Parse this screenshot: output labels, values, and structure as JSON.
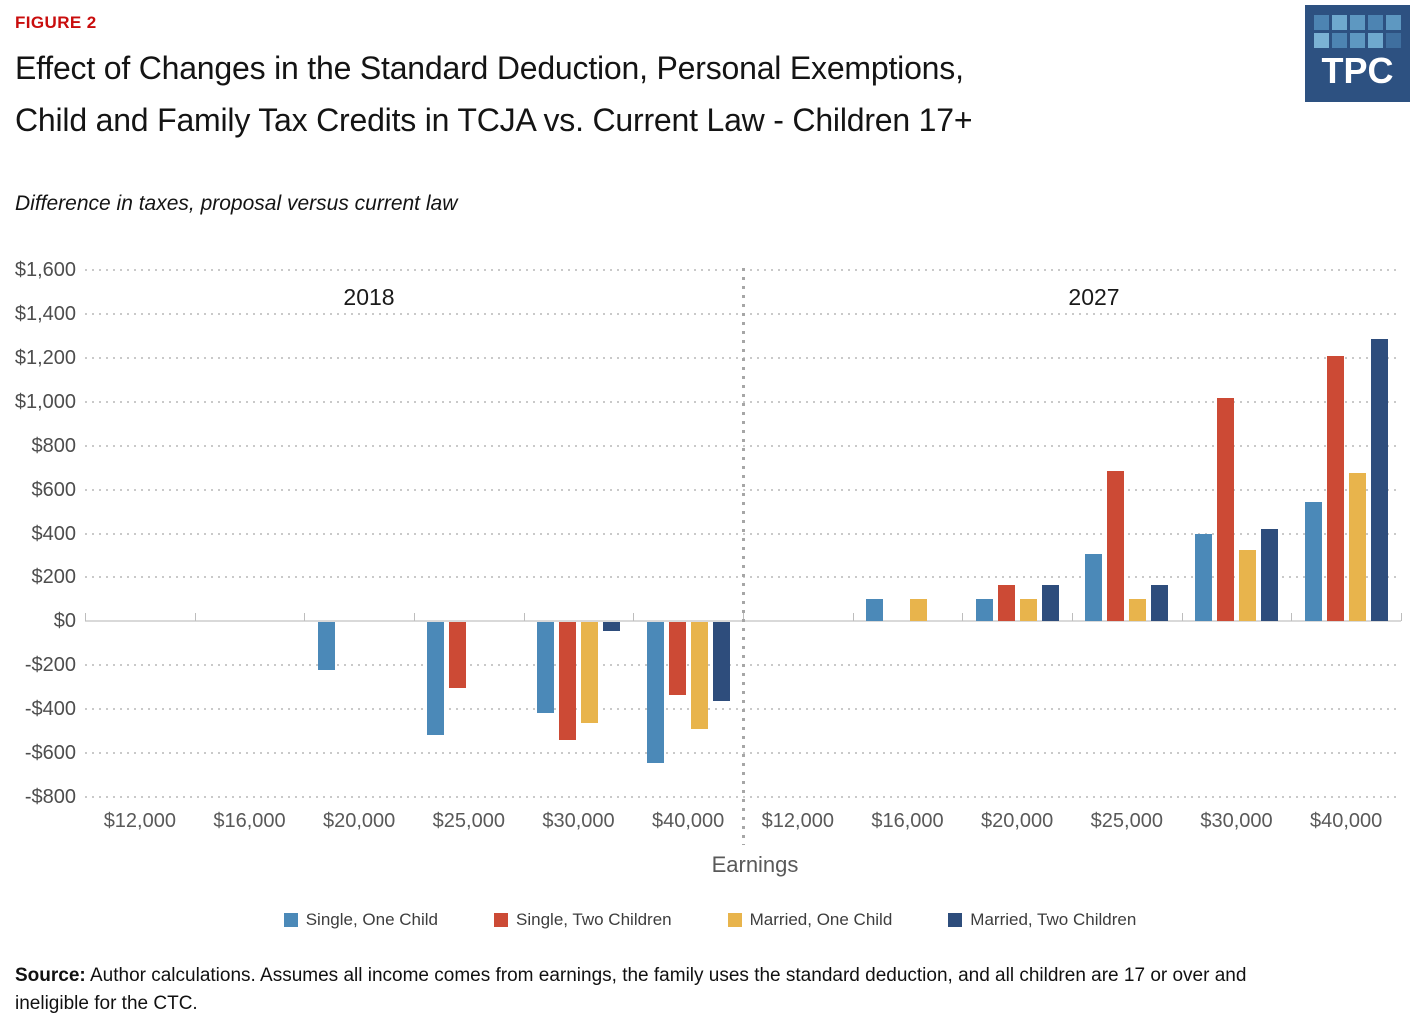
{
  "header": {
    "figure_label": "FIGURE 2",
    "title_line1": "Effect of Changes in the Standard Deduction, Personal Exemptions,",
    "title_line2": "Child and Family Tax Credits in TCJA vs. Current Law - Children 17+",
    "subtitle": "Difference in taxes, proposal versus current law"
  },
  "logo": {
    "text": "TPC",
    "background": "#2d5181",
    "tile_colors": [
      [
        "#4d84b2",
        "#6fa9ce",
        "#5e98c1",
        "#4d84b2",
        "#5e98c1"
      ],
      [
        "#7bb2d4",
        "#4d84b2",
        "#5e98c1",
        "#6fa9ce",
        "#3f6f9f"
      ]
    ]
  },
  "chart_data": {
    "type": "bar",
    "title": "Effect of Changes in the Standard Deduction, Personal Exemptions, Child and Family Tax Credits in TCJA vs. Current Law - Children 17+",
    "subtitle": "Difference in taxes, proposal versus current law",
    "xlabel": "Earnings",
    "ylabel": "",
    "ylim": [
      -800,
      1600
    ],
    "y_tick_step": 200,
    "y_tick_labels": [
      "$1,600",
      "$1,400",
      "$1,200",
      "$1,000",
      "$800",
      "$600",
      "$400",
      "$200",
      "$0",
      "-$200",
      "-$400",
      "-$600",
      "-$800"
    ],
    "grid": "dotted-horizontal",
    "legend_position": "bottom",
    "categories": [
      "$12,000",
      "$16,000",
      "$20,000",
      "$25,000",
      "$30,000",
      "$40,000"
    ],
    "series_names": [
      "Single, One Child",
      "Single, Two Children",
      "Married, One Child",
      "Married, Two Children"
    ],
    "series_colors": [
      "#4b89b8",
      "#cc4a35",
      "#e8b44c",
      "#2e4d7c"
    ],
    "panels": [
      {
        "label": "2018",
        "series": [
          {
            "name": "Single, One Child",
            "values": [
              0,
              0,
              -215,
              -515,
              -415,
              -640
            ]
          },
          {
            "name": "Single, Two Children",
            "values": [
              0,
              0,
              0,
              -300,
              -535,
              -330
            ]
          },
          {
            "name": "Married, One Child",
            "values": [
              0,
              0,
              0,
              0,
              -460,
              -485
            ]
          },
          {
            "name": "Married, Two Children",
            "values": [
              0,
              0,
              0,
              0,
              -40,
              -360
            ]
          }
        ]
      },
      {
        "label": "2027",
        "series": [
          {
            "name": "Single, One Child",
            "values": [
              0,
              100,
              100,
              305,
              400,
              545
            ]
          },
          {
            "name": "Single, Two Children",
            "values": [
              0,
              0,
              165,
              685,
              1015,
              1210
            ]
          },
          {
            "name": "Married, One Child",
            "values": [
              0,
              100,
              100,
              100,
              325,
              675
            ]
          },
          {
            "name": "Married, Two Children",
            "values": [
              0,
              0,
              165,
              165,
              420,
              1285
            ]
          }
        ]
      }
    ]
  },
  "source": {
    "label": "Source:",
    "text": " Author calculations. Assumes all income comes from earnings, the family uses the standard deduction, and all children are 17 or over and ineligible for the CTC."
  }
}
